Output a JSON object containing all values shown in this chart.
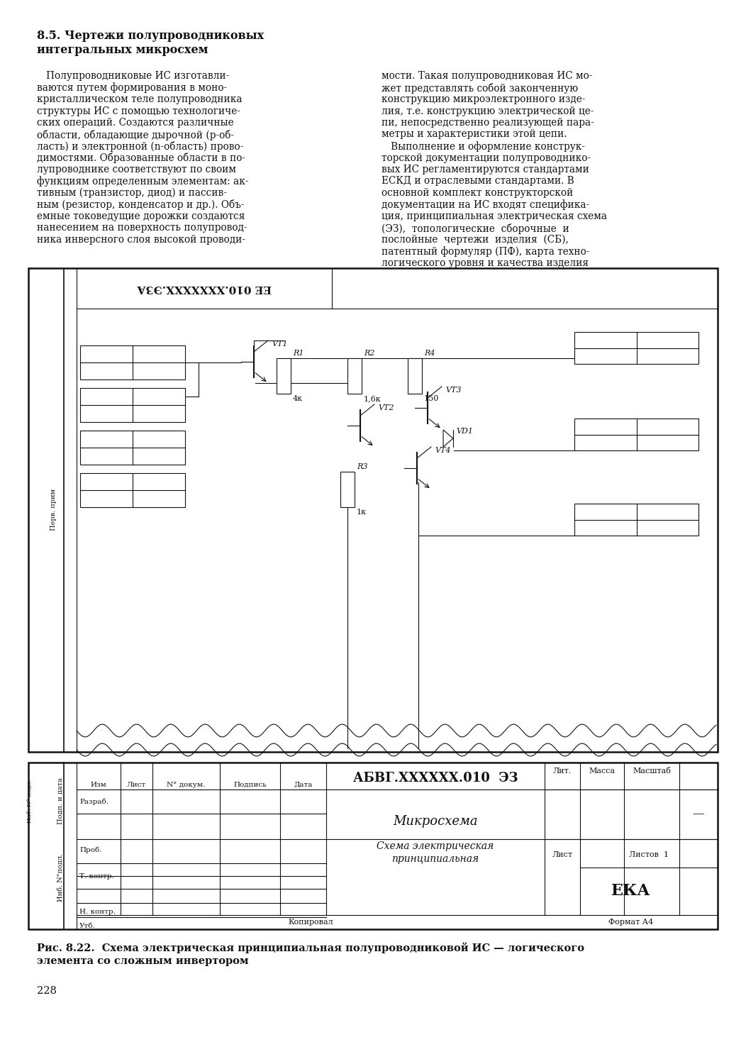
{
  "page_width": 10.52,
  "page_height": 15.0,
  "bg_color": "#ffffff",
  "text_color": "#111111",
  "heading_line1": "8.5. Чертежи полупроводниковых",
  "heading_line2": "интегральных микросхем",
  "left_col_text": [
    "   Полупроводниковые ИС изготавли-",
    "ваются путем формирования в моно-",
    "кристаллическом теле полупроводника",
    "структуры ИС с помощью технологиче-",
    "ских операций. Создаются различные",
    "области, обладающие дырочной (р-об-",
    "ласть) и электронной (n-область) прово-",
    "димостями. Образованные области в по-",
    "лупроводнике соответствуют по своим",
    "функциям определенным элементам: ак-",
    "тивным (транзистор, диод) и пассив-",
    "ным (резистор, конденсатор и др.). Объ-",
    "емные токоведущие дорожки создаются",
    "нанесением на поверхность полупровод-",
    "ника инверсного слоя высокой проводи-"
  ],
  "right_col_text": [
    "мости. Такая полупроводниковая ИС мо-",
    "жет представлять собой законченную",
    "конструкцию микроэлектронного изде-",
    "лия, т.е. конструкцию электрической це-",
    "пи, непосредственно реализующей пара-",
    "метры и характеристики этой цепи.",
    "   Выполнение и оформление конструк-",
    "торской документации полупроводнико-",
    "вых ИС регламентируются стандартами",
    "ЕСКД и отраслевыми стандартами. В",
    "основной комплект конструкторской",
    "документации на ИС входят специфика-",
    "ция, принципиальная электрическая схема",
    "(ЭЗ),  топологические  сборочные  и",
    "послойные  чертежи  изделия  (СБ),",
    "патентный формуляр (ПФ), карта техно-",
    "логического уровня и качества изделия"
  ],
  "fig_caption_line1": "Рис. 8.22.  Схема электрическая принципиальная полупроводниковой ИС — логического",
  "fig_caption_line2": "элемента со сложным инвертором",
  "page_num": "228"
}
